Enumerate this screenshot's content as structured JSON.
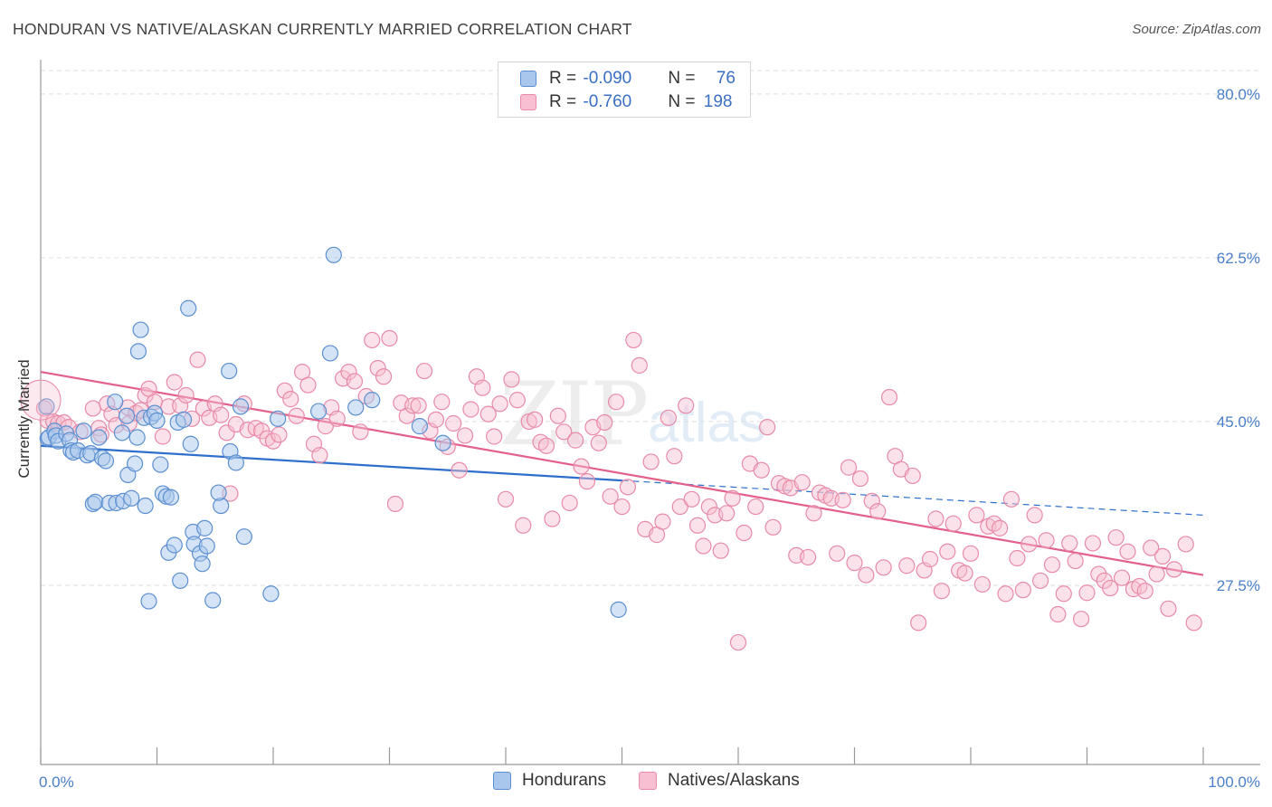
{
  "title": "HONDURAN VS NATIVE/ALASKAN CURRENTLY MARRIED CORRELATION CHART",
  "source": "Source: ZipAtlas.com",
  "watermark": {
    "zip": "ZIP",
    "atlas": "atlas"
  },
  "legend": {
    "rows": [
      {
        "r_label": "R = ",
        "r_value": "-0.090",
        "n_label": "N = ",
        "n_value": "76"
      },
      {
        "r_label": "R = ",
        "r_value": "-0.760",
        "n_label": "N = ",
        "n_value": "198"
      }
    ]
  },
  "bottom_legend": {
    "a": "Hondurans",
    "b": "Natives/Alaskans"
  },
  "colors": {
    "blue_fill": "#a9c7ec",
    "blue_stroke": "#5b8fd1",
    "blue_line": "#2f6fcc",
    "pink_fill": "#f7bfd1",
    "pink_stroke": "#e88aa8",
    "pink_line": "#e2608a",
    "grid": "#dddddd",
    "axis_label": "#4a7fc9"
  },
  "chart_data": {
    "type": "scatter",
    "title": "HONDURAN VS NATIVE/ALASKAN CURRENTLY MARRIED CORRELATION CHART",
    "xlabel": "",
    "ylabel": "Currently Married",
    "xlim": [
      0,
      100
    ],
    "ylim": [
      10,
      82.5
    ],
    "x_tick_labels": [
      "0.0%",
      "100.0%"
    ],
    "y_ticks": [
      27.5,
      45.0,
      62.5,
      80.0
    ],
    "y_tick_labels": [
      "27.5%",
      "45.0%",
      "62.5%",
      "80.0%"
    ],
    "grid": true,
    "legend_position": "top-center",
    "series": [
      {
        "name": "Hondurans",
        "r": -0.09,
        "n": 76,
        "trend": {
          "x": [
            0,
            50,
            100
          ],
          "y": [
            42.4,
            38.7,
            35.0
          ],
          "solid_until": 50
        },
        "points": [
          [
            0.5,
            46.6
          ],
          [
            0.6,
            43.2
          ],
          [
            0.7,
            43.3
          ],
          [
            1.2,
            44.0
          ],
          [
            1.3,
            43.5
          ],
          [
            1.5,
            42.9
          ],
          [
            2.2,
            43.7
          ],
          [
            2.5,
            43.0
          ],
          [
            2.6,
            41.9
          ],
          [
            2.8,
            41.7
          ],
          [
            3.2,
            41.9
          ],
          [
            3.7,
            44.0
          ],
          [
            4.0,
            41.4
          ],
          [
            4.3,
            41.6
          ],
          [
            4.5,
            36.2
          ],
          [
            4.7,
            36.4
          ],
          [
            5.0,
            43.3
          ],
          [
            5.3,
            41.1
          ],
          [
            5.6,
            40.8
          ],
          [
            5.9,
            36.3
          ],
          [
            6.4,
            47.1
          ],
          [
            6.5,
            36.3
          ],
          [
            7.0,
            43.8
          ],
          [
            7.1,
            36.5
          ],
          [
            7.4,
            45.6
          ],
          [
            7.5,
            39.3
          ],
          [
            7.8,
            36.8
          ],
          [
            8.1,
            40.5
          ],
          [
            8.3,
            43.3
          ],
          [
            8.4,
            52.5
          ],
          [
            8.6,
            54.8
          ],
          [
            8.9,
            45.4
          ],
          [
            9.0,
            36.0
          ],
          [
            9.5,
            45.5
          ],
          [
            9.8,
            45.9
          ],
          [
            10.0,
            45.1
          ],
          [
            10.3,
            40.4
          ],
          [
            10.5,
            37.3
          ],
          [
            10.8,
            37.0
          ],
          [
            11.0,
            31.0
          ],
          [
            11.5,
            31.8
          ],
          [
            11.8,
            44.9
          ],
          [
            12.0,
            28.0
          ],
          [
            12.3,
            45.2
          ],
          [
            12.7,
            57.1
          ],
          [
            12.9,
            42.6
          ],
          [
            13.1,
            33.2
          ],
          [
            13.2,
            31.9
          ],
          [
            13.7,
            30.9
          ],
          [
            13.9,
            29.8
          ],
          [
            14.1,
            33.6
          ],
          [
            14.3,
            31.7
          ],
          [
            14.8,
            25.9
          ],
          [
            15.5,
            36.0
          ],
          [
            16.2,
            50.4
          ],
          [
            16.3,
            41.8
          ],
          [
            16.8,
            40.6
          ],
          [
            17.2,
            46.6
          ],
          [
            17.5,
            32.7
          ],
          [
            19.8,
            26.6
          ],
          [
            20.4,
            45.3
          ],
          [
            23.9,
            46.1
          ],
          [
            24.9,
            52.3
          ],
          [
            25.2,
            62.8
          ],
          [
            27.1,
            46.5
          ],
          [
            28.5,
            47.3
          ],
          [
            32.6,
            44.5
          ],
          [
            34.6,
            42.7
          ],
          [
            49.7,
            24.9
          ],
          [
            9.3,
            25.8
          ],
          [
            11.2,
            36.9
          ],
          [
            15.3,
            37.4
          ]
        ]
      },
      {
        "name": "Natives/Alaskans",
        "r": -0.76,
        "n": 198,
        "trend": {
          "x": [
            0,
            100
          ],
          "y": [
            50.3,
            28.6
          ]
        },
        "points": [
          [
            0.3,
            46.4
          ],
          [
            0.6,
            45.1
          ],
          [
            1.1,
            45.0
          ],
          [
            1.5,
            44.8
          ],
          [
            2.0,
            44.9
          ],
          [
            2.4,
            44.4
          ],
          [
            3.4,
            43.9
          ],
          [
            4.5,
            46.4
          ],
          [
            5.0,
            44.3
          ],
          [
            5.2,
            43.6
          ],
          [
            5.7,
            46.9
          ],
          [
            6.1,
            45.8
          ],
          [
            6.5,
            44.6
          ],
          [
            7.5,
            46.5
          ],
          [
            7.6,
            44.8
          ],
          [
            8.2,
            45.9
          ],
          [
            8.6,
            46.2
          ],
          [
            9.0,
            47.8
          ],
          [
            9.3,
            48.5
          ],
          [
            9.8,
            47.1
          ],
          [
            10.5,
            43.4
          ],
          [
            11.0,
            46.6
          ],
          [
            11.5,
            49.2
          ],
          [
            12.0,
            46.7
          ],
          [
            12.5,
            47.8
          ],
          [
            13.0,
            45.3
          ],
          [
            13.5,
            51.6
          ],
          [
            14.0,
            46.4
          ],
          [
            14.5,
            45.4
          ],
          [
            15.0,
            46.9
          ],
          [
            15.5,
            45.7
          ],
          [
            16.0,
            43.8
          ],
          [
            16.3,
            37.3
          ],
          [
            16.8,
            44.7
          ],
          [
            17.5,
            46.9
          ],
          [
            17.8,
            44.1
          ],
          [
            18.5,
            44.3
          ],
          [
            19.0,
            44.0
          ],
          [
            19.5,
            43.2
          ],
          [
            20.0,
            42.9
          ],
          [
            20.5,
            43.6
          ],
          [
            21.0,
            48.3
          ],
          [
            21.5,
            47.4
          ],
          [
            22.0,
            45.6
          ],
          [
            22.5,
            50.3
          ],
          [
            23.0,
            48.9
          ],
          [
            23.5,
            42.6
          ],
          [
            24.0,
            41.4
          ],
          [
            24.5,
            44.5
          ],
          [
            25.0,
            46.5
          ],
          [
            25.5,
            45.3
          ],
          [
            26.0,
            49.6
          ],
          [
            26.5,
            50.3
          ],
          [
            27.0,
            49.3
          ],
          [
            27.5,
            43.9
          ],
          [
            28.0,
            47.7
          ],
          [
            28.5,
            53.7
          ],
          [
            29.0,
            50.7
          ],
          [
            29.5,
            49.8
          ],
          [
            30.0,
            53.9
          ],
          [
            30.5,
            36.2
          ],
          [
            31.0,
            47.0
          ],
          [
            31.5,
            45.6
          ],
          [
            32.0,
            46.7
          ],
          [
            32.5,
            46.7
          ],
          [
            33.0,
            50.4
          ],
          [
            33.5,
            44.0
          ],
          [
            34.0,
            45.2
          ],
          [
            34.5,
            47.1
          ],
          [
            35.0,
            42.3
          ],
          [
            35.5,
            44.8
          ],
          [
            36.0,
            39.8
          ],
          [
            36.5,
            43.5
          ],
          [
            37.0,
            46.3
          ],
          [
            37.5,
            49.8
          ],
          [
            38.0,
            48.6
          ],
          [
            38.5,
            45.8
          ],
          [
            39.0,
            43.4
          ],
          [
            39.5,
            46.9
          ],
          [
            40.0,
            36.7
          ],
          [
            40.5,
            49.5
          ],
          [
            41.0,
            47.3
          ],
          [
            41.5,
            33.9
          ],
          [
            42.0,
            45.0
          ],
          [
            42.5,
            45.2
          ],
          [
            43.0,
            42.8
          ],
          [
            43.5,
            42.4
          ],
          [
            44.0,
            34.6
          ],
          [
            44.5,
            45.6
          ],
          [
            45.0,
            43.9
          ],
          [
            45.5,
            36.3
          ],
          [
            46.0,
            43.0
          ],
          [
            46.5,
            40.2
          ],
          [
            47.0,
            38.6
          ],
          [
            47.5,
            44.4
          ],
          [
            48.0,
            42.7
          ],
          [
            48.5,
            44.9
          ],
          [
            49.0,
            37.0
          ],
          [
            49.5,
            47.1
          ],
          [
            50.0,
            35.9
          ],
          [
            50.5,
            38.0
          ],
          [
            51.0,
            53.7
          ],
          [
            51.5,
            51.0
          ],
          [
            52.0,
            33.5
          ],
          [
            52.5,
            40.7
          ],
          [
            53.0,
            32.9
          ],
          [
            53.5,
            34.3
          ],
          [
            54.0,
            45.4
          ],
          [
            54.5,
            41.3
          ],
          [
            55.0,
            35.9
          ],
          [
            55.5,
            46.7
          ],
          [
            56.0,
            36.7
          ],
          [
            56.5,
            33.9
          ],
          [
            57.0,
            31.7
          ],
          [
            57.5,
            35.9
          ],
          [
            58.0,
            35.0
          ],
          [
            58.5,
            31.2
          ],
          [
            59.0,
            35.2
          ],
          [
            59.5,
            36.8
          ],
          [
            60.0,
            21.4
          ],
          [
            60.5,
            33.1
          ],
          [
            61.0,
            40.5
          ],
          [
            61.5,
            35.9
          ],
          [
            62.0,
            39.8
          ],
          [
            62.5,
            44.4
          ],
          [
            63.0,
            33.7
          ],
          [
            63.5,
            38.4
          ],
          [
            64.0,
            38.1
          ],
          [
            64.5,
            37.9
          ],
          [
            65.0,
            30.7
          ],
          [
            65.5,
            38.5
          ],
          [
            66.0,
            30.5
          ],
          [
            66.5,
            35.2
          ],
          [
            67.0,
            37.4
          ],
          [
            67.5,
            37.1
          ],
          [
            68.0,
            36.8
          ],
          [
            68.5,
            30.9
          ],
          [
            69.0,
            36.6
          ],
          [
            69.5,
            40.1
          ],
          [
            70.0,
            29.9
          ],
          [
            70.5,
            38.9
          ],
          [
            71.0,
            28.6
          ],
          [
            71.5,
            36.5
          ],
          [
            72.0,
            35.4
          ],
          [
            72.5,
            29.4
          ],
          [
            73.0,
            47.6
          ],
          [
            73.5,
            41.3
          ],
          [
            74.0,
            39.9
          ],
          [
            74.5,
            29.6
          ],
          [
            75.0,
            39.2
          ],
          [
            75.5,
            23.5
          ],
          [
            76.0,
            29.1
          ],
          [
            76.5,
            30.3
          ],
          [
            77.0,
            34.6
          ],
          [
            77.5,
            26.9
          ],
          [
            78.0,
            31.1
          ],
          [
            78.5,
            34.1
          ],
          [
            79.0,
            29.1
          ],
          [
            79.5,
            28.8
          ],
          [
            80.0,
            30.9
          ],
          [
            80.5,
            35.0
          ],
          [
            81.0,
            27.6
          ],
          [
            81.5,
            33.8
          ],
          [
            82.0,
            34.1
          ],
          [
            82.5,
            33.6
          ],
          [
            83.0,
            26.6
          ],
          [
            83.5,
            36.7
          ],
          [
            84.0,
            30.4
          ],
          [
            84.5,
            27.0
          ],
          [
            85.0,
            31.9
          ],
          [
            85.5,
            35.0
          ],
          [
            86.0,
            28.0
          ],
          [
            86.5,
            32.3
          ],
          [
            87.0,
            29.7
          ],
          [
            87.5,
            24.4
          ],
          [
            88.0,
            26.6
          ],
          [
            88.5,
            32.0
          ],
          [
            89.0,
            30.1
          ],
          [
            89.5,
            23.9
          ],
          [
            90.0,
            26.7
          ],
          [
            90.5,
            32.0
          ],
          [
            91.0,
            28.7
          ],
          [
            91.5,
            28.0
          ],
          [
            92.0,
            27.2
          ],
          [
            92.5,
            32.6
          ],
          [
            93.0,
            28.3
          ],
          [
            93.5,
            31.1
          ],
          [
            94.0,
            27.1
          ],
          [
            94.5,
            27.4
          ],
          [
            95.0,
            26.9
          ],
          [
            95.5,
            31.5
          ],
          [
            96.0,
            28.7
          ],
          [
            96.5,
            30.6
          ],
          [
            97.0,
            25.0
          ],
          [
            97.5,
            29.2
          ],
          [
            98.5,
            31.9
          ],
          [
            99.2,
            23.5
          ]
        ]
      }
    ]
  }
}
